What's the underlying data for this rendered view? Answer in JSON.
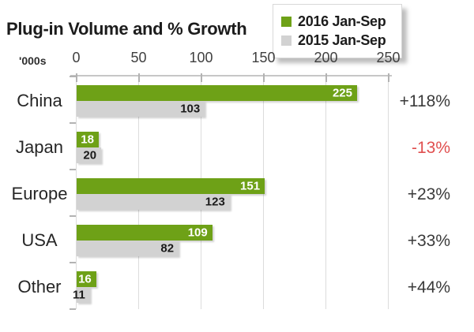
{
  "title": "Plug-in Volume and % Growth",
  "unit_label": "'000s",
  "legend": [
    {
      "label": "2016 Jan-Sep",
      "color": "#6ea117"
    },
    {
      "label": "2015 Jan-Sep",
      "color": "#d2d2d2"
    }
  ],
  "colors": {
    "bar_2016": "#6ea117",
    "bar_2015": "#d2d2d2",
    "value_label_on_green": "#ffffff",
    "value_label_on_gray": "#1a1a1a",
    "growth_positive": "#3a3a3a",
    "growth_negative": "#e04f4f",
    "gridline": "#dcdcdc",
    "axis_line": "#c7c7c7"
  },
  "chart_data": {
    "type": "bar",
    "orientation": "horizontal",
    "title": "Plug-in Volume and % Growth",
    "xlabel": "'000s",
    "xlim": [
      0,
      250
    ],
    "xticks": [
      0,
      50,
      100,
      150,
      200,
      250
    ],
    "grid": true,
    "legend_position": "top-right",
    "categories": [
      "China",
      "Japan",
      "Europe",
      "USA",
      "Other"
    ],
    "series": [
      {
        "name": "2016 Jan-Sep",
        "color": "#6ea117",
        "values": [
          225,
          18,
          151,
          109,
          16
        ]
      },
      {
        "name": "2015 Jan-Sep",
        "color": "#d2d2d2",
        "values": [
          103,
          20,
          123,
          82,
          11
        ]
      }
    ],
    "growth": [
      {
        "label": "+118%",
        "negative": false
      },
      {
        "label": "-13%",
        "negative": true
      },
      {
        "label": "+23%",
        "negative": false
      },
      {
        "label": "+33%",
        "negative": false
      },
      {
        "label": "+44%",
        "negative": false
      }
    ]
  }
}
